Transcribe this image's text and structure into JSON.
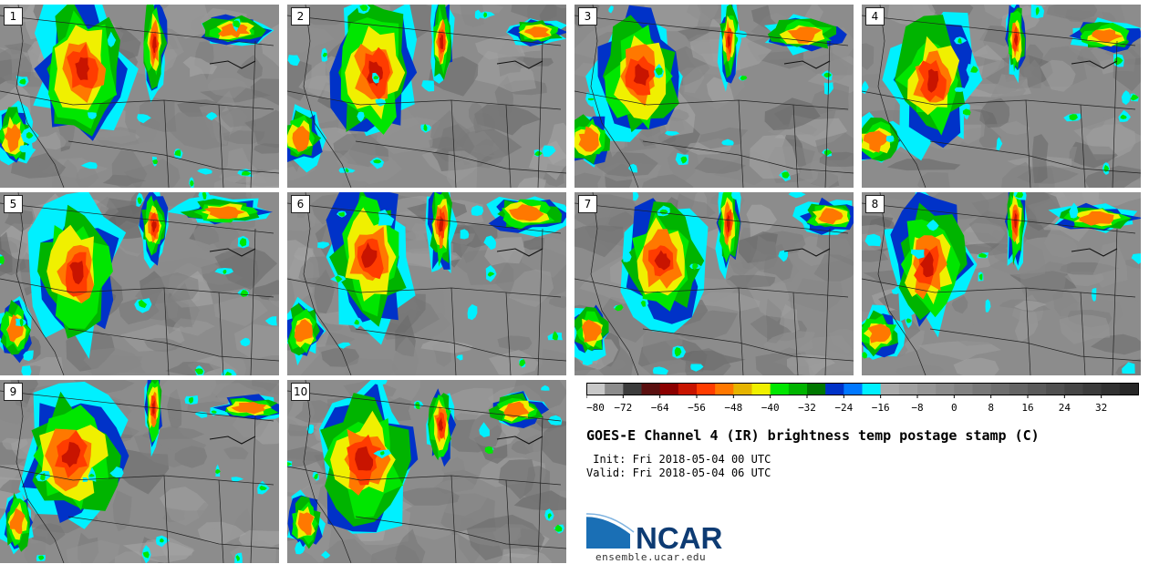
{
  "panels": [
    {
      "label": "1"
    },
    {
      "label": "2"
    },
    {
      "label": "3"
    },
    {
      "label": "4"
    },
    {
      "label": "5"
    },
    {
      "label": "6"
    },
    {
      "label": "7"
    },
    {
      "label": "8"
    },
    {
      "label": "9"
    },
    {
      "label": "10"
    }
  ],
  "colorbar": {
    "ticks": [
      "−80",
      "−72",
      "−64",
      "−56",
      "−48",
      "−40",
      "−32",
      "−24",
      "−16",
      "−8",
      "0",
      "8",
      "16",
      "24",
      "32"
    ],
    "colors": [
      "#c8c8c8",
      "#8c8c8c",
      "#3c3c3c",
      "#5a1010",
      "#8b0000",
      "#c81400",
      "#ff3c00",
      "#ff7800",
      "#e6b400",
      "#f0f000",
      "#00e600",
      "#00b400",
      "#007800",
      "#0032c8",
      "#0078ff",
      "#00f0ff",
      "#aaaaaa",
      "#a0a0a0",
      "#969696",
      "#8c8c8c",
      "#828282",
      "#787878",
      "#6e6e6e",
      "#646464",
      "#5a5a5a",
      "#505050",
      "#464646",
      "#3c3c3c",
      "#323232",
      "#282828"
    ]
  },
  "title": "GOES-E Channel 4 (IR) brightness temp postage stamp (C)",
  "init": " Init: Fri 2018-05-04 00 UTC",
  "valid": "Valid: Fri 2018-05-04 06 UTC",
  "logo": {
    "text": "NCAR"
  },
  "url": "ensemble.ucar.edu"
}
